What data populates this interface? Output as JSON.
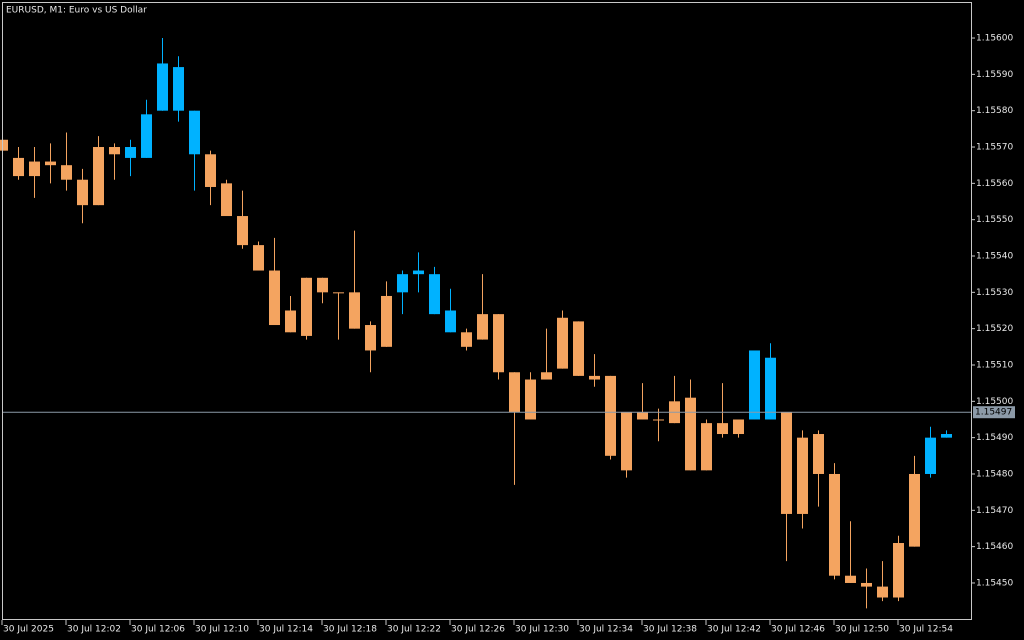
{
  "chart_data": {
    "type": "candlestick",
    "title": "EURUSD, M1:  Euro vs US Dollar",
    "up_color": "#00b2ff",
    "down_color": "#f4a460",
    "price_line_color": "#8c9aa8",
    "current_price": 1.15497,
    "categories": [
      "30 Jul 2025",
      null,
      null,
      null,
      "30 Jul 12:02",
      null,
      null,
      null,
      "30 Jul 12:06",
      null,
      null,
      null,
      "30 Jul 12:10",
      null,
      null,
      null,
      "30 Jul 12:14",
      null,
      null,
      null,
      "30 Jul 12:18",
      null,
      null,
      null,
      "30 Jul 12:22",
      null,
      null,
      null,
      "30 Jul 12:26",
      null,
      null,
      null,
      "30 Jul 12:30",
      null,
      null,
      null,
      "30 Jul 12:34",
      null,
      null,
      null,
      "30 Jul 12:38",
      null,
      null,
      null,
      "30 Jul 12:42",
      null,
      null,
      null,
      "30 Jul 12:46",
      null,
      null,
      null,
      "30 Jul 12:50",
      null,
      null,
      null,
      "30 Jul 12:54",
      null,
      null,
      null
    ],
    "open": [
      1.15572,
      1.15567,
      1.15566,
      1.15566,
      1.15565,
      1.15561,
      1.1557,
      1.1557,
      1.15567,
      1.15567,
      1.1558,
      1.1558,
      1.15568,
      1.15568,
      1.1556,
      1.15551,
      1.15543,
      1.15536,
      1.15525,
      1.15534,
      1.15534,
      1.1553,
      1.1553,
      1.15521,
      1.15529,
      1.1553,
      1.15535,
      1.15524,
      1.15519,
      1.15519,
      1.15524,
      1.15524,
      1.15508,
      1.15506,
      1.15508,
      1.15523,
      1.15522,
      1.15507,
      1.15507,
      1.15497,
      1.15497,
      1.15495,
      1.155,
      1.15501,
      1.15494,
      1.15494,
      1.15495,
      1.15495,
      1.15495,
      1.15497,
      1.1549,
      1.15491,
      1.1548,
      1.15452,
      1.1545,
      1.15449,
      1.15461,
      1.1548,
      1.1548,
      1.1549
    ],
    "high": [
      1.15573,
      1.1557,
      1.1557,
      1.15571,
      1.15574,
      1.15564,
      1.15573,
      1.15571,
      1.15572,
      1.15583,
      1.156,
      1.15595,
      1.1558,
      1.15569,
      1.15561,
      1.15558,
      1.15544,
      1.15545,
      1.15529,
      1.15534,
      1.15534,
      1.1553,
      1.15547,
      1.15522,
      1.15533,
      1.15536,
      1.15541,
      1.15537,
      1.15531,
      1.1552,
      1.15535,
      1.15524,
      1.15508,
      1.15508,
      1.1552,
      1.15525,
      1.15522,
      1.15513,
      1.15507,
      1.15497,
      1.15505,
      1.15498,
      1.15507,
      1.15506,
      1.15495,
      1.15505,
      1.15495,
      1.15514,
      1.15516,
      1.15497,
      1.15492,
      1.15492,
      1.15483,
      1.15467,
      1.15454,
      1.15456,
      1.15463,
      1.15485,
      1.15493,
      1.15492
    ],
    "low": [
      1.15568,
      1.15561,
      1.15556,
      1.1556,
      1.15558,
      1.15549,
      1.15554,
      1.15561,
      1.15562,
      1.15567,
      1.1558,
      1.15577,
      1.15558,
      1.15554,
      1.15551,
      1.15542,
      1.15536,
      1.15521,
      1.15519,
      1.15517,
      1.15527,
      1.15517,
      1.1552,
      1.15508,
      1.15515,
      1.15524,
      1.1553,
      1.15524,
      1.15519,
      1.15514,
      1.15517,
      1.15506,
      1.15477,
      1.15495,
      1.15506,
      1.15509,
      1.15507,
      1.15504,
      1.15484,
      1.15479,
      1.15495,
      1.15489,
      1.15494,
      1.15481,
      1.15481,
      1.1549,
      1.1549,
      1.15495,
      1.15495,
      1.15456,
      1.15465,
      1.15471,
      1.15451,
      1.1545,
      1.15443,
      1.15445,
      1.15445,
      1.1546,
      1.15479,
      1.1549
    ],
    "close": [
      1.15569,
      1.15562,
      1.15562,
      1.15565,
      1.15561,
      1.15554,
      1.15554,
      1.15568,
      1.1557,
      1.15579,
      1.15593,
      1.15592,
      1.1558,
      1.15559,
      1.15551,
      1.15543,
      1.15536,
      1.15521,
      1.15519,
      1.15518,
      1.1553,
      1.1553,
      1.1552,
      1.15514,
      1.15515,
      1.15535,
      1.15536,
      1.15535,
      1.15525,
      1.15515,
      1.15517,
      1.15508,
      1.15497,
      1.15495,
      1.15506,
      1.15509,
      1.15507,
      1.15506,
      1.15485,
      1.15481,
      1.15495,
      1.15495,
      1.15494,
      1.15481,
      1.15481,
      1.15491,
      1.15491,
      1.15514,
      1.15512,
      1.15469,
      1.15469,
      1.1548,
      1.15452,
      1.1545,
      1.15449,
      1.15446,
      1.15446,
      1.1546,
      1.1549,
      1.15491
    ],
    "ylim": [
      1.1544,
      1.1561
    ],
    "yticks": [
      {
        "value": 1.1545,
        "label": "1.15450"
      },
      {
        "value": 1.1546,
        "label": "1.15460"
      },
      {
        "value": 1.1547,
        "label": "1.15470"
      },
      {
        "value": 1.1548,
        "label": "1.15480"
      },
      {
        "value": 1.1549,
        "label": "1.15490"
      },
      {
        "value": 1.155,
        "label": "1.15500"
      },
      {
        "value": 1.1551,
        "label": "1.15510"
      },
      {
        "value": 1.1552,
        "label": "1.15520"
      },
      {
        "value": 1.1553,
        "label": "1.15530"
      },
      {
        "value": 1.1554,
        "label": "1.15540"
      },
      {
        "value": 1.1555,
        "label": "1.15550"
      },
      {
        "value": 1.1556,
        "label": "1.15560"
      },
      {
        "value": 1.1557,
        "label": "1.15570"
      },
      {
        "value": 1.1558,
        "label": "1.15580"
      },
      {
        "value": 1.1559,
        "label": "1.15590"
      },
      {
        "value": 1.156,
        "label": "1.15600"
      }
    ],
    "grid": false
  }
}
